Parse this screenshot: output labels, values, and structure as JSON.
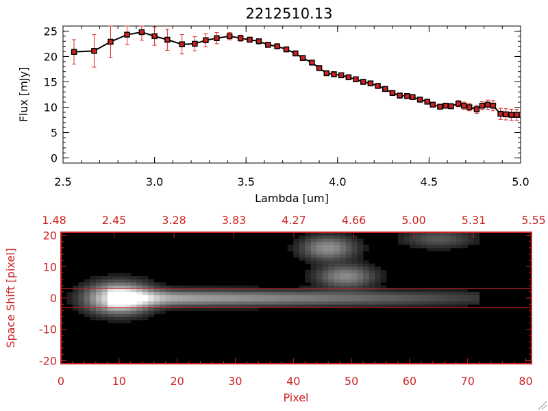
{
  "chart_data": [
    {
      "type": "line",
      "title": "2212510.13",
      "xlabel": "Lambda [um]",
      "ylabel": "Flux [mJy]",
      "xlim": [
        2.5,
        5.0
      ],
      "ylim": [
        -1,
        26
      ],
      "xticks": [
        "2.5",
        "3.0",
        "3.5",
        "4.0",
        "4.5",
        "5.0"
      ],
      "yticks": [
        "0",
        "5",
        "10",
        "15",
        "20",
        "25"
      ],
      "grid": false,
      "colors": {
        "line": "#000000",
        "marker": "#cc2222",
        "errorbar": "#dd2222"
      },
      "x": [
        2.56,
        2.67,
        2.76,
        2.85,
        2.93,
        3.0,
        3.07,
        3.15,
        3.22,
        3.28,
        3.34,
        3.41,
        3.47,
        3.52,
        3.57,
        3.62,
        3.67,
        3.72,
        3.77,
        3.81,
        3.86,
        3.9,
        3.94,
        3.98,
        4.02,
        4.06,
        4.1,
        4.14,
        4.18,
        4.22,
        4.26,
        4.3,
        4.34,
        4.38,
        4.41,
        4.45,
        4.49,
        4.52,
        4.56,
        4.59,
        4.62,
        4.66,
        4.69,
        4.72,
        4.76,
        4.79,
        4.82,
        4.85,
        4.89,
        4.92,
        4.95,
        4.98
      ],
      "values": [
        20.9,
        21.1,
        22.9,
        24.3,
        24.8,
        24.0,
        23.3,
        22.4,
        22.5,
        23.2,
        23.6,
        24.0,
        23.6,
        23.3,
        23.0,
        22.3,
        22.0,
        21.4,
        20.6,
        19.7,
        18.8,
        17.7,
        16.7,
        16.5,
        16.3,
        15.9,
        15.5,
        15.0,
        14.7,
        14.2,
        13.6,
        12.8,
        12.3,
        12.2,
        12.0,
        11.5,
        11.1,
        10.5,
        10.1,
        10.3,
        10.2,
        10.7,
        10.3,
        10.0,
        9.6,
        10.3,
        10.5,
        10.3,
        8.7,
        8.6,
        8.5,
        8.5
      ],
      "errors": [
        2.4,
        3.2,
        3.1,
        2.0,
        1.6,
        1.8,
        2.1,
        1.9,
        1.4,
        1.3,
        1.1,
        0.7,
        0.6,
        0.5,
        0.5,
        0.5,
        0.5,
        0.5,
        0.5,
        0.5,
        0.5,
        0.5,
        0.5,
        0.5,
        0.5,
        0.5,
        0.5,
        0.5,
        0.5,
        0.5,
        0.5,
        0.5,
        0.5,
        0.5,
        0.5,
        0.5,
        0.5,
        0.5,
        0.5,
        0.5,
        0.5,
        0.6,
        0.7,
        0.7,
        0.8,
        0.8,
        0.9,
        1.0,
        1.1,
        1.1,
        1.1,
        1.1
      ]
    },
    {
      "type": "heatmap",
      "xlabel": "Pixel",
      "ylabel": "Space Shift [pixel]",
      "xlim": [
        0,
        81
      ],
      "ylim": [
        -21,
        21
      ],
      "xticks": [
        "0",
        "10",
        "20",
        "30",
        "40",
        "50",
        "60",
        "70",
        "80"
      ],
      "yticks": [
        "-20",
        "-10",
        "0",
        "10",
        "20"
      ],
      "top_axis_ticks": [
        "1.48",
        "2.45",
        "3.28",
        "3.83",
        "4.27",
        "4.66",
        "5.00",
        "5.31",
        "5.55"
      ],
      "extraction_lines": [
        3,
        -3
      ],
      "colors": {
        "axes": "#cc2222",
        "extraction_line": "#cc2222",
        "colormap": "grayscale"
      },
      "sources": [
        {
          "x": 10,
          "y": 0,
          "intensity": 1.0,
          "width": 3.5,
          "height": 3.0
        },
        {
          "x": 46,
          "y": 16,
          "intensity": 0.45,
          "width": 3.0,
          "height": 2.5
        },
        {
          "x": 49,
          "y": 7,
          "intensity": 0.42,
          "width": 3.2,
          "height": 2.3
        },
        {
          "x": 65,
          "y": 19,
          "intensity": 0.22,
          "width": 4.0,
          "height": 2.0
        }
      ],
      "trace": {
        "x_start": 8,
        "x_end": 72,
        "y": 0,
        "intensity_start": 0.65,
        "intensity_end": 0.12
      }
    }
  ]
}
